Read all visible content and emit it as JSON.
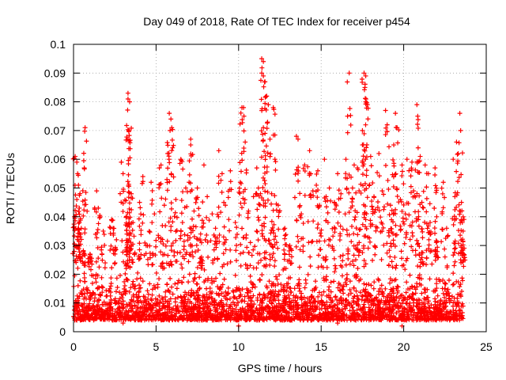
{
  "chart_data": {
    "type": "scatter",
    "title": "Day 049 of 2018, Rate Of TEC Index for receiver p454",
    "xlabel": "GPS time / hours",
    "ylabel": "ROTI / TECUs",
    "xlim": [
      0,
      25
    ],
    "ylim": [
      0,
      0.1
    ],
    "xticks": [
      0,
      5,
      10,
      15,
      20,
      25
    ],
    "xtick_labels": [
      "0",
      "5",
      "10",
      "15",
      "20",
      "25"
    ],
    "yticks": [
      0,
      0.01,
      0.02,
      0.03,
      0.04,
      0.05,
      0.06,
      0.07,
      0.08,
      0.09,
      0.1
    ],
    "ytick_labels": [
      "0",
      "0.01",
      "0.02",
      "0.03",
      "0.04",
      "0.05",
      "0.06",
      "0.07",
      "0.08",
      "0.09",
      "0.1"
    ],
    "grid": true,
    "marker": "+",
    "color": "#ff0000",
    "data_x_range": [
      0.0,
      23.6
    ],
    "baseline_band": [
      0.004,
      0.022
    ],
    "series": [
      {
        "name": "ROTI",
        "points": [
          [
            0.1,
            0.061
          ],
          [
            0.2,
            0.059
          ],
          [
            0.25,
            0.055
          ],
          [
            0.3,
            0.051
          ],
          [
            0.2,
            0.046
          ],
          [
            0.35,
            0.043
          ],
          [
            0.7,
            0.071
          ],
          [
            0.65,
            0.057
          ],
          [
            1.4,
            0.049
          ],
          [
            1.5,
            0.043
          ],
          [
            2.3,
            0.039
          ],
          [
            2.4,
            0.036
          ],
          [
            2.9,
            0.059
          ],
          [
            3.0,
            0.055
          ],
          [
            3.3,
            0.083
          ],
          [
            3.3,
            0.081
          ],
          [
            3.4,
            0.08
          ],
          [
            3.35,
            0.07
          ],
          [
            3.3,
            0.067
          ],
          [
            3.5,
            0.048
          ],
          [
            4.2,
            0.054
          ],
          [
            4.7,
            0.052
          ],
          [
            5.2,
            0.057
          ],
          [
            5.3,
            0.058
          ],
          [
            5.8,
            0.076
          ],
          [
            5.9,
            0.074
          ],
          [
            5.95,
            0.071
          ],
          [
            6.0,
            0.064
          ],
          [
            5.7,
            0.062
          ],
          [
            6.5,
            0.06
          ],
          [
            6.8,
            0.05
          ],
          [
            7.0,
            0.052
          ],
          [
            7.1,
            0.067
          ],
          [
            7.1,
            0.065
          ],
          [
            7.5,
            0.05
          ],
          [
            7.9,
            0.058
          ],
          [
            8.8,
            0.063
          ],
          [
            9.0,
            0.055
          ],
          [
            9.5,
            0.056
          ],
          [
            10.2,
            0.078
          ],
          [
            10.3,
            0.078
          ],
          [
            10.4,
            0.066
          ],
          [
            10.1,
            0.052
          ],
          [
            11.1,
            0.057
          ],
          [
            11.4,
            0.095
          ],
          [
            11.5,
            0.094
          ],
          [
            11.4,
            0.09
          ],
          [
            11.5,
            0.089
          ],
          [
            11.6,
            0.087
          ],
          [
            11.7,
            0.082
          ],
          [
            11.8,
            0.079
          ],
          [
            11.5,
            0.071
          ],
          [
            11.6,
            0.069
          ],
          [
            12.1,
            0.078
          ],
          [
            11.9,
            0.067
          ],
          [
            12.2,
            0.06
          ],
          [
            13.5,
            0.068
          ],
          [
            13.6,
            0.067
          ],
          [
            14.3,
            0.063
          ],
          [
            14.0,
            0.058
          ],
          [
            14.8,
            0.056
          ],
          [
            15.2,
            0.06
          ],
          [
            15.5,
            0.05
          ],
          [
            16.0,
            0.055
          ],
          [
            16.5,
            0.06
          ],
          [
            16.6,
            0.075
          ],
          [
            16.7,
            0.09
          ],
          [
            17.0,
            0.058
          ],
          [
            17.2,
            0.057
          ],
          [
            17.5,
            0.065
          ],
          [
            17.6,
            0.09
          ],
          [
            17.7,
            0.089
          ],
          [
            17.65,
            0.085
          ],
          [
            17.7,
            0.08
          ],
          [
            17.8,
            0.079
          ],
          [
            17.5,
            0.07
          ],
          [
            18.0,
            0.061
          ],
          [
            18.5,
            0.062
          ],
          [
            18.9,
            0.077
          ],
          [
            19.0,
            0.072
          ],
          [
            19.5,
            0.076
          ],
          [
            19.6,
            0.071
          ],
          [
            19.4,
            0.065
          ],
          [
            19.9,
            0.058
          ],
          [
            20.2,
            0.06
          ],
          [
            20.5,
            0.059
          ],
          [
            20.8,
            0.079
          ],
          [
            20.85,
            0.075
          ],
          [
            21.0,
            0.061
          ],
          [
            21.3,
            0.058
          ],
          [
            21.5,
            0.055
          ],
          [
            21.9,
            0.057
          ],
          [
            22.4,
            0.052
          ],
          [
            23.0,
            0.06
          ],
          [
            23.2,
            0.066
          ],
          [
            23.4,
            0.076
          ],
          [
            23.45,
            0.07
          ],
          [
            23.3,
            0.062
          ],
          [
            23.5,
            0.045
          ],
          [
            23.6,
            0.04
          ],
          [
            23.6,
            0.035
          ],
          [
            0.05,
            0.04
          ],
          [
            0.4,
            0.033
          ],
          [
            0.6,
            0.028
          ],
          [
            1.0,
            0.027
          ],
          [
            1.8,
            0.035
          ],
          [
            2.6,
            0.032
          ],
          [
            3.2,
            0.04
          ],
          [
            3.6,
            0.038
          ],
          [
            4.0,
            0.045
          ],
          [
            4.4,
            0.03
          ],
          [
            4.9,
            0.041
          ],
          [
            5.5,
            0.044
          ],
          [
            6.2,
            0.046
          ],
          [
            6.6,
            0.038
          ],
          [
            7.3,
            0.042
          ],
          [
            7.7,
            0.034
          ],
          [
            8.1,
            0.047
          ],
          [
            8.4,
            0.041
          ],
          [
            8.6,
            0.036
          ],
          [
            9.2,
            0.044
          ],
          [
            9.8,
            0.038
          ],
          [
            10.6,
            0.042
          ],
          [
            10.9,
            0.047
          ],
          [
            11.2,
            0.05
          ],
          [
            12.0,
            0.048
          ],
          [
            12.4,
            0.044
          ],
          [
            12.8,
            0.036
          ],
          [
            13.1,
            0.03
          ],
          [
            13.8,
            0.041
          ],
          [
            14.5,
            0.049
          ],
          [
            14.9,
            0.044
          ],
          [
            15.3,
            0.047
          ],
          [
            15.8,
            0.045
          ],
          [
            16.2,
            0.048
          ],
          [
            16.9,
            0.05
          ],
          [
            17.3,
            0.049
          ],
          [
            18.2,
            0.047
          ],
          [
            18.7,
            0.049
          ],
          [
            19.2,
            0.044
          ],
          [
            19.8,
            0.046
          ],
          [
            20.1,
            0.041
          ],
          [
            20.6,
            0.049
          ],
          [
            21.1,
            0.045
          ],
          [
            21.6,
            0.038
          ],
          [
            22.0,
            0.04
          ],
          [
            22.6,
            0.036
          ],
          [
            23.1,
            0.047
          ],
          [
            23.55,
            0.038
          ],
          [
            10.0,
            0.002
          ],
          [
            19.9,
            0.002
          ],
          [
            3.0,
            0.003
          ],
          [
            16.0,
            0.003
          ],
          [
            0.2,
            0.004
          ],
          [
            23.5,
            0.005
          ]
        ]
      }
    ]
  }
}
